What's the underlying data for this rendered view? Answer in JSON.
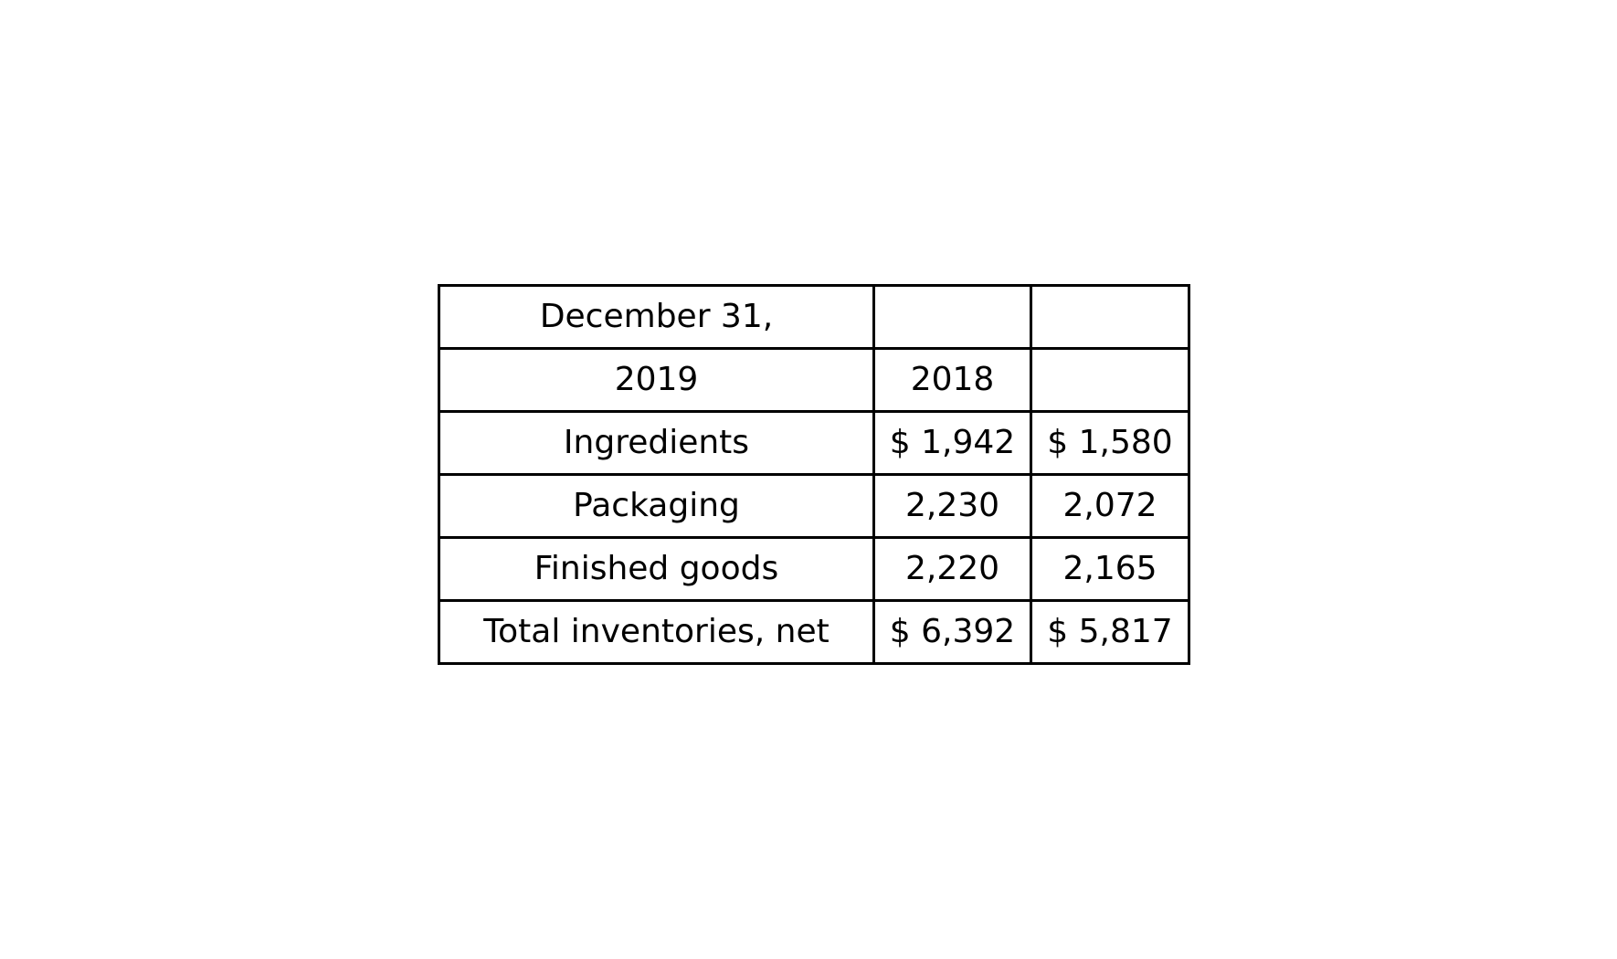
{
  "table": {
    "header": [
      [
        "December 31,",
        "",
        ""
      ],
      [
        "2019",
        "2018",
        ""
      ]
    ],
    "rows": [
      [
        "Ingredients",
        "$ 1,942",
        "$ 1,580"
      ],
      [
        "Packaging",
        "2,230",
        "2,072"
      ],
      [
        "Finished goods",
        "2,220",
        "2,165"
      ],
      [
        "Total inventories, net",
        "$ 6,392",
        "$ 5,817"
      ]
    ]
  }
}
